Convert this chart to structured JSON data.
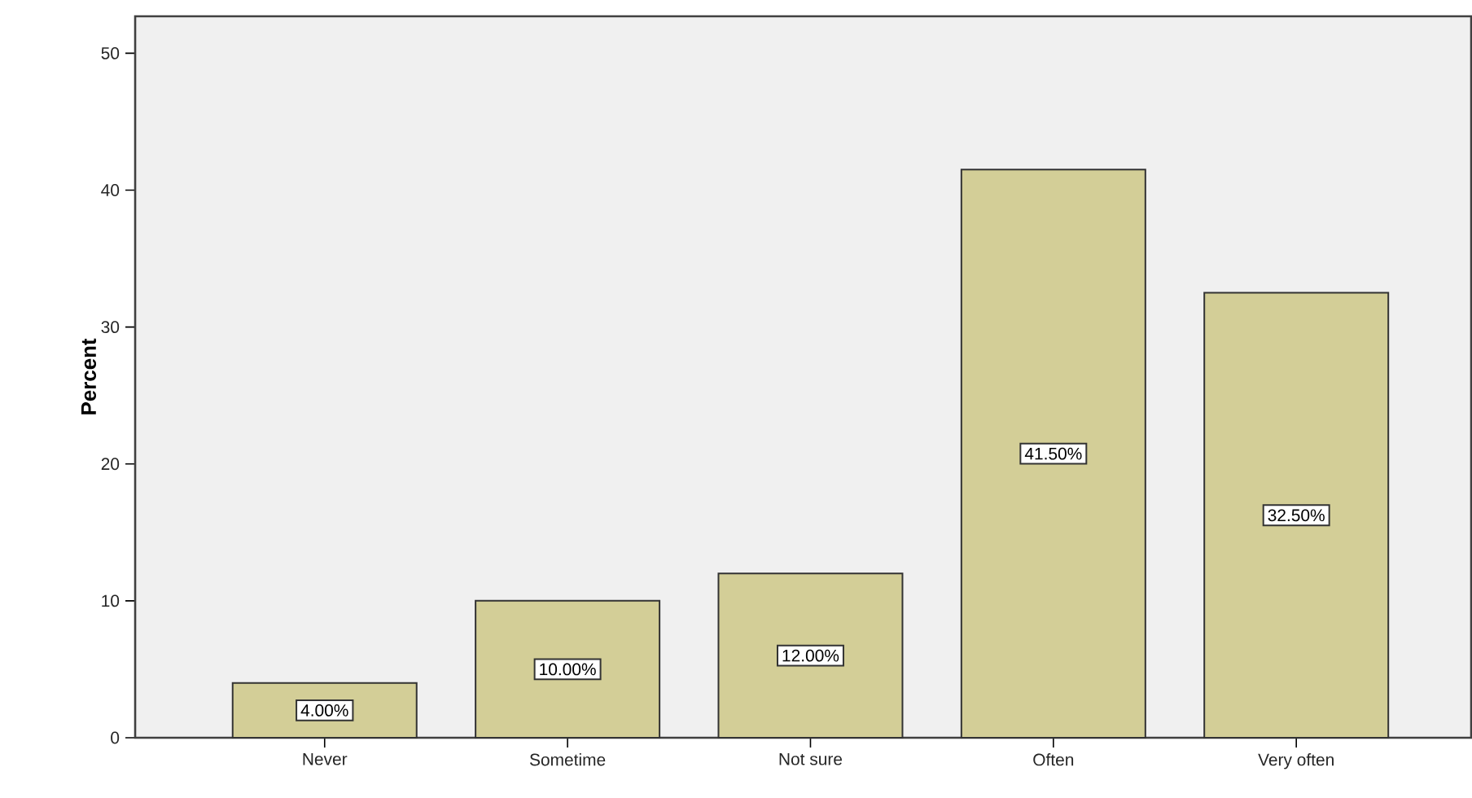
{
  "chart_data": {
    "type": "bar",
    "ylabel": "Percent",
    "categories": [
      "Never",
      "Sometime",
      "Not sure",
      "Often",
      "Very often"
    ],
    "values": [
      4,
      10,
      12,
      41.5,
      32.5
    ],
    "value_labels": [
      "4.00%",
      "10.00%",
      "12.00%",
      "41.50%",
      "32.50%"
    ],
    "color": "#d3ce97",
    "ylim": [
      0,
      52.7
    ],
    "yticks": [
      0,
      10,
      20,
      30,
      40,
      50
    ],
    "grid": false
  }
}
